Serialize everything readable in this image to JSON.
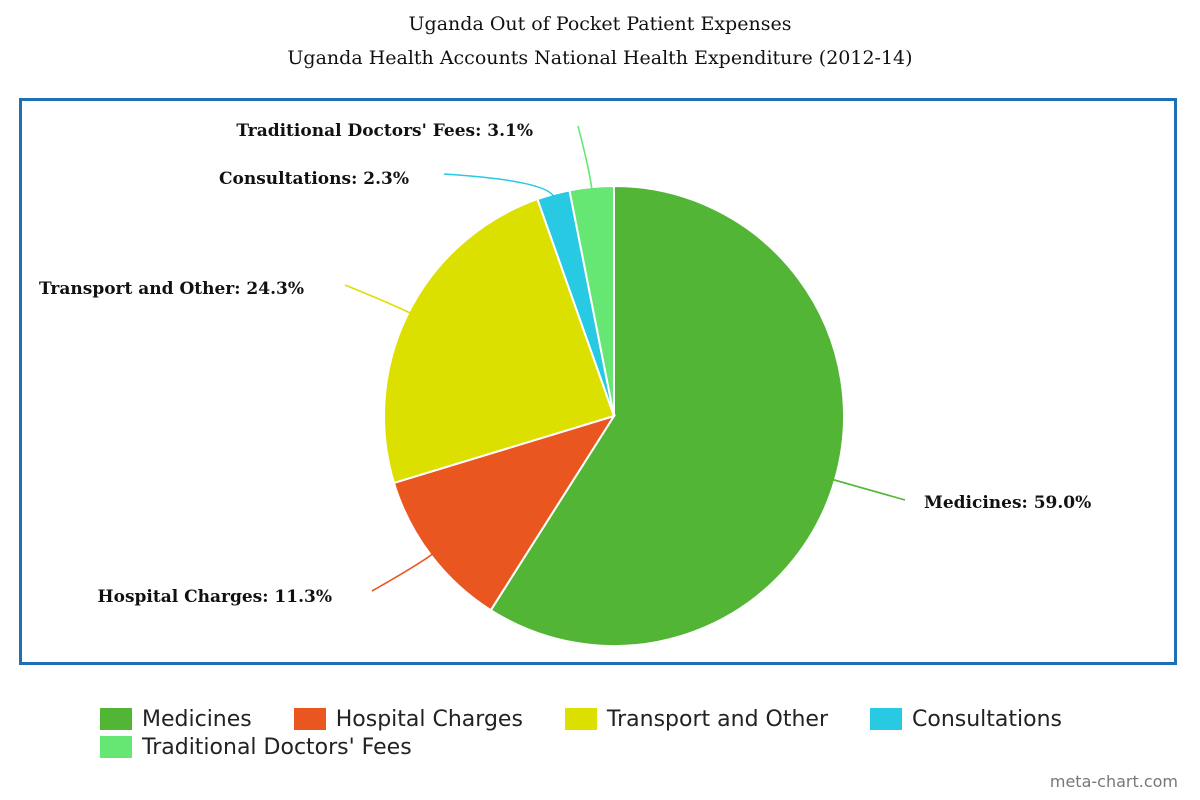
{
  "chart_data": {
    "type": "pie",
    "title": "Uganda Out of Pocket Patient Expenses",
    "subtitle": "Uganda Health Accounts National Health Expenditure (2012-14)",
    "slices": [
      {
        "label": "Medicines",
        "value": 59.0,
        "display": "Medicines: 59.0%",
        "color": "#52b535"
      },
      {
        "label": "Hospital Charges",
        "value": 11.3,
        "display": "Hospital Charges: 11.3%",
        "color": "#ea561f"
      },
      {
        "label": "Transport and Other",
        "value": 24.3,
        "display": "Transport and Other: 24.3%",
        "color": "#dce000"
      },
      {
        "label": "Consultations",
        "value": 2.3,
        "display": "Consultations: 2.3%",
        "color": "#27c9e3"
      },
      {
        "label": "Traditional Doctors' Fees",
        "value": 3.1,
        "display": "Traditional Doctors' Fees: 3.1%",
        "color": "#66e672"
      }
    ],
    "legend": {
      "position": "bottom",
      "rows": [
        [
          "Medicines",
          "Hospital Charges",
          "Transport and Other",
          "Consultations"
        ],
        [
          "Traditional Doctors' Fees"
        ]
      ]
    }
  },
  "watermark": "meta-chart.com"
}
